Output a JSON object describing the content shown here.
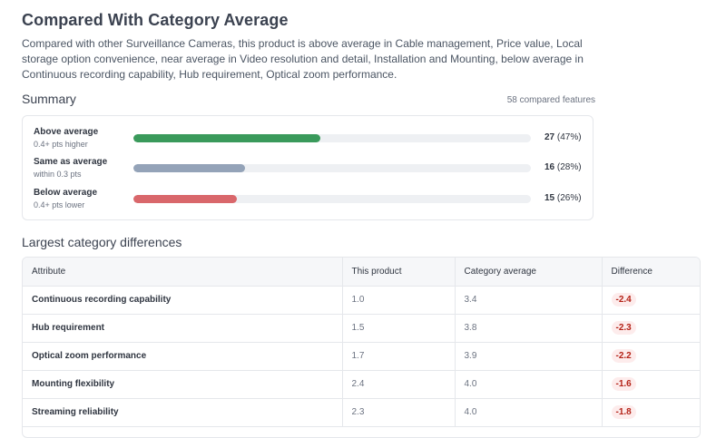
{
  "title": "Compared With Category Average",
  "description": "Compared with other Surveillance Cameras, this product is above average in Cable management, Price value, Local storage option convenience, near average in Video resolution and detail, Installation and Mounting, below average in Continuous recording capability, Hub requirement, Optical zoom performance.",
  "summary": {
    "heading": "Summary",
    "compared_count": "58 compared features",
    "rows": [
      {
        "label": "Above average",
        "sub": "0.4+ pts higher",
        "count": "27",
        "percent": "(47%)",
        "fraction": 0.47,
        "color": "#3a9a5b"
      },
      {
        "label": "Same as average",
        "sub": "within 0.3 pts",
        "count": "16",
        "percent": "(28%)",
        "fraction": 0.28,
        "color": "#94a3b8"
      },
      {
        "label": "Below average",
        "sub": "0.4+ pts lower",
        "count": "15",
        "percent": "(26%)",
        "fraction": 0.26,
        "color": "#d9676b"
      }
    ]
  },
  "differences": {
    "heading": "Largest category differences",
    "columns": [
      "Attribute",
      "This product",
      "Category average",
      "Difference"
    ],
    "rows": [
      {
        "attribute": "Continuous recording capability",
        "product": "1.0",
        "average": "3.4",
        "difference": "-2.4"
      },
      {
        "attribute": "Hub requirement",
        "product": "1.5",
        "average": "3.8",
        "difference": "-2.3"
      },
      {
        "attribute": "Optical zoom performance",
        "product": "1.7",
        "average": "3.9",
        "difference": "-2.2"
      },
      {
        "attribute": "Mounting flexibility",
        "product": "2.4",
        "average": "4.0",
        "difference": "-1.6"
      },
      {
        "attribute": "Streaming reliability",
        "product": "2.3",
        "average": "4.0",
        "difference": "-1.8"
      }
    ]
  }
}
